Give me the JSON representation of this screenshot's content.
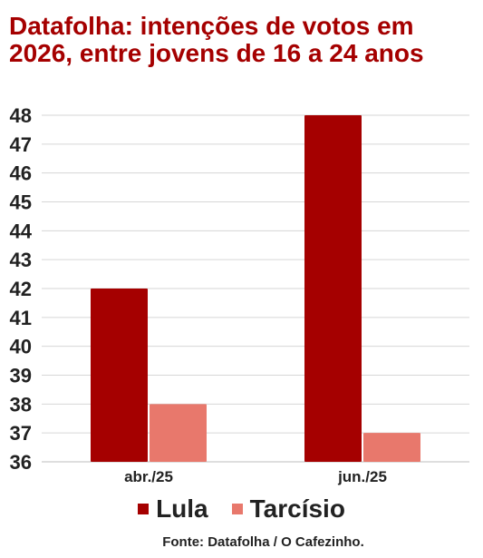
{
  "chart_data": {
    "type": "bar",
    "title": "Datafolha: intenções de votos em 2026, entre jovens de 16 a 24 anos",
    "categories": [
      "abr./25",
      "jun./25"
    ],
    "series": [
      {
        "name": "Lula",
        "values": [
          42,
          48
        ],
        "color": "#a50000"
      },
      {
        "name": "Tarcísio",
        "values": [
          38,
          37
        ],
        "color": "#e8786c"
      }
    ],
    "ylim": [
      36,
      48
    ],
    "yticks": [
      "36",
      "37",
      "38",
      "39",
      "40",
      "41",
      "42",
      "43",
      "44",
      "45",
      "46",
      "47",
      "48"
    ],
    "grid": true,
    "legend": "bottom",
    "source": "Fonte: Datafolha / O Cafezinho."
  }
}
